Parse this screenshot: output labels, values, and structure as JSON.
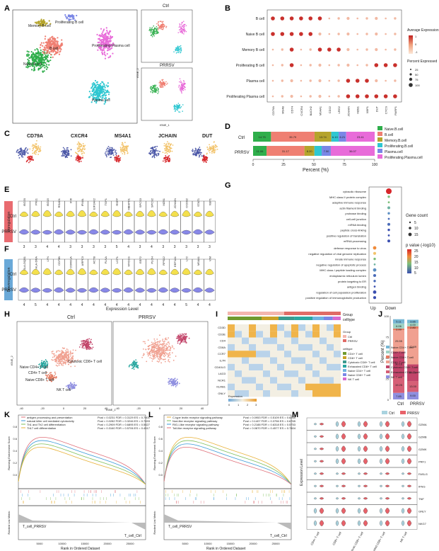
{
  "panel_letters": [
    "A",
    "B",
    "C",
    "D",
    "E",
    "F",
    "G",
    "H",
    "I",
    "J",
    "K",
    "L",
    "M"
  ],
  "panelA": {
    "clusters": [
      "Memory B cell",
      "Proliferating B cell",
      "Proliferating Plasma cell",
      "B cell",
      "Naive B cell",
      "Plasma cell"
    ],
    "small_titles": [
      "Ctrl",
      "PRRSV"
    ],
    "axis_x": "tSNE_1",
    "axis_y": "tSNE_2"
  },
  "panelB": {
    "rows": [
      "B cell",
      "Naive B cell",
      "Memory B cell",
      "Proliferating B cell",
      "Plasma cell",
      "Proliferating Plasma cell"
    ],
    "genes": [
      "CD79A",
      "MS4B",
      "CD74",
      "CXCR4",
      "BACH2",
      "MS4A1",
      "CD22",
      "LRG2",
      "JCHAIN",
      "MZB1",
      "XBP1",
      "DUT",
      "CYCS",
      "PARP1"
    ],
    "legend_title1": "Average Expression",
    "legend_ticks1": [
      "1",
      "0",
      "-1"
    ],
    "legend_title2": "Percent Expressed",
    "legend_ticks2": [
      "25",
      "50",
      "75",
      "100"
    ]
  },
  "panelC": {
    "genes": [
      "CD79A",
      "CXCR4",
      "MS4A1",
      "JCHAIN",
      "DUT"
    ]
  },
  "panelD": {
    "chart_data": {
      "type": "bar",
      "orientation": "horizontal-stacked",
      "categories": [
        "Ctrl",
        "PRRSV"
      ],
      "series": [
        {
          "name": "Naive.B.cell",
          "color": "#2fae4b",
          "values": [
            14.75,
            11.06
          ]
        },
        {
          "name": "B.cell",
          "color": "#ef7f72",
          "values": [
            35.79,
            31.17
          ]
        },
        {
          "name": "Memory.B.cell",
          "color": "#b5a42c",
          "values": [
            13.74,
            8.2
          ]
        },
        {
          "name": "Proliferating.B.cell",
          "color": "#2ec7d1",
          "values": [
            6.1,
            6.0
          ]
        },
        {
          "name": "Plasma.cell",
          "color": "#7a86e6",
          "values": [
            6.21,
            7.5
          ]
        },
        {
          "name": "Proliferating.Plasma.cell",
          "color": "#e86bd9",
          "values": [
            23.41,
            36.07
          ]
        }
      ],
      "xlabel": "Percent (%)",
      "xticks": [
        "0",
        "25",
        "50",
        "75",
        "100"
      ],
      "xlim": [
        0,
        100
      ]
    }
  },
  "panelE": {
    "genes": [
      "ISG20",
      "PFE1",
      "ISG15",
      "RSAD1",
      "IFI6",
      "IFI44L",
      "EIF2AK2",
      "TOP1",
      "RSFP",
      "MBHPD1",
      "SPCS3",
      "SPCS2",
      "MZB1",
      "JCHAIN",
      "CCDB2",
      "STAT1",
      "XBP1"
    ],
    "group_label": "Upregulation",
    "rows": [
      "Ctrl",
      "PRRSV"
    ],
    "ticks": [
      "3",
      "3",
      "4",
      "4",
      "3",
      "3",
      "3",
      "3",
      "5",
      "4",
      "3",
      "4",
      "3",
      "3",
      "3",
      "3",
      "3"
    ]
  },
  "panelF": {
    "genes": [
      "SLA-DQB1",
      "HLA-DRA",
      "LYN",
      "CD79B",
      "CORO1A",
      "ARPC3",
      "ACTB",
      "FLNA",
      "LCP1",
      "MYO1G",
      "EEF2",
      "PLCH",
      "RPS12",
      "EEF1A1",
      "LY2",
      "MS4A1",
      "VIM"
    ],
    "group_label": "Downregulation",
    "rows": [
      "Ctrl",
      "PRRSV"
    ],
    "ticks": [
      "4",
      "5",
      "4",
      "4",
      "4",
      "4",
      "4",
      "4",
      "4",
      "4",
      "4",
      "4",
      "4",
      "4",
      "5",
      "4",
      "4"
    ],
    "xlabel": "Expression Level"
  },
  "panelG": {
    "terms_up": [
      "cytosolic ribosome",
      "MHC class II protein complex",
      "adaptive immune response",
      "actin filament binding",
      "protease binding",
      "cell-cell junction",
      "mRNA binding",
      "peptide cross-linking",
      "positive regulation of translation",
      "mRNA processing"
    ],
    "terms_down": [
      "defense response to virus",
      "negative regulation of viral genome replication",
      "innate immune response",
      "negative regulation of apoptotic process",
      "MHC class I peptide loading complex",
      "endoplasmic reticulum lumen",
      "protein targeting to ER",
      "antigen binding",
      "regulation of cell population proliferation",
      "positive regulation of immunoglobulin production"
    ],
    "xticks": [
      "Up",
      "Down"
    ],
    "legend_count_title": "Gene count",
    "legend_count": [
      "5",
      "10",
      "15"
    ],
    "legend_p_title": "p value (-log10)",
    "legend_p": [
      "25",
      "20",
      "15",
      "10",
      "5"
    ]
  },
  "panelH": {
    "titles": [
      "Ctrl",
      "PRRSV"
    ],
    "axis_x": "tSNE_1",
    "axis_y": "tSNE_2",
    "cluster_labels": [
      "CD4+ T cell",
      "Naive CD4+ T cell",
      "Naive CD8+ T cell",
      "NK T cell",
      "Cytotoxic CD8+ T cell"
    ],
    "xticks": [
      "-40",
      "-20",
      "0",
      "20",
      "40",
      "-40",
      "-20",
      "0",
      "20",
      "40"
    ]
  },
  "panelI": {
    "genes": [
      "CD3D",
      "CD3E",
      "CD4",
      "CD8A",
      "CCR7",
      "IL7R",
      "CD40LG",
      "LAG3",
      "NCR1",
      "KLRB1",
      "GNLY"
    ],
    "legend_group_title": "Group",
    "legend_group": [
      "Ctrl",
      "PRRSV"
    ],
    "legend_celltype_title": "celltype",
    "legend_celltype": [
      "CD4+ T cell",
      "CD8+ T cell",
      "Cytotoxic CD8+ T cell",
      "Exhausted CD8+ T cell",
      "Naive CD4+ T cell",
      "Naive CD8+ T cell",
      "NK T cell"
    ],
    "legend_expr_title": "Expression",
    "legend_expr": [
      "0",
      "1",
      "2",
      "3"
    ],
    "top_labels": [
      "Group",
      "celltype"
    ]
  },
  "panelJ": {
    "chart_data": {
      "type": "bar",
      "orientation": "vertical-stacked",
      "categories": [
        "Ctrl",
        "PRRSV"
      ],
      "series": [
        {
          "name": "NK.T.cell",
          "color": "#8f8fe0",
          "values": [
            7.85,
            9.0
          ]
        },
        {
          "name": "Exhausted.CD8+.T.cell",
          "color": "#d65f76",
          "values": [
            19.25,
            13.0
          ]
        },
        {
          "name": "Cytotoxic.CD8+.T.cell",
          "color": "#c2456a",
          "values": [
            30.16,
            20.0
          ]
        },
        {
          "name": "CD8+.T.cell",
          "color": "#f0a090",
          "values": [
            25.55,
            42.69
          ]
        },
        {
          "name": "Naive.CD8+.T.cell",
          "color": "#e47a60",
          "values": [
            2.0,
            2.8
          ]
        },
        {
          "name": "CD4+.T.cell",
          "color": "#9fd2c4",
          "values": [
            6.06,
            4.0
          ]
        },
        {
          "name": "Naive.CD4+.T.cell",
          "color": "#76b7d4",
          "values": [
            5.11,
            3.86
          ]
        }
      ],
      "ylabel": "Percent (%)",
      "yticks": [
        "0",
        "25",
        "50",
        "75",
        "100"
      ],
      "ylim": [
        0,
        100
      ],
      "segment_labels": [
        [
          "7.85",
          "19.25",
          "30.16",
          "25.55",
          "2.00",
          "6.06",
          "5.11"
        ],
        [
          "9.00",
          "13.00",
          "20.00",
          "42.69",
          "2.80",
          "4.00",
          "3.86"
        ]
      ]
    }
  },
  "panelK": {
    "legend": [
      "antigen processing and presentation",
      "natural killer cell mediated cytotoxicity",
      "Th1 and Th2 cell differentiation",
      "Th17 cell differentiation"
    ],
    "stats": [
      "Pval = 0.0231 FDR = 0.3129 ES = 0.7601",
      "Pval = 0.0282 FDR = 0.3246 ES = 0.7693",
      "Pval = 0.2909 FDR = 0.6895 ES = 0.5627",
      "Pval = 0.3160 FDR = 0.5706 ES = 0.4517"
    ],
    "ylabel_top": "Running Enrichment Score",
    "ylabel_bottom": "Ranked List Metric",
    "xlabel": "Rank in Ordered Dataset",
    "left_label": "T_cell_PRRSV",
    "right_label": "T_cell_Ctrl",
    "xticks": [
      "5000",
      "10000",
      "15000",
      "20000",
      "25000"
    ],
    "yticks": [
      "0.8",
      "0.6",
      "0.4",
      "0.2",
      "0.0"
    ]
  },
  "panelL": {
    "legend": [
      "C-type lectin receptor signaling pathway",
      "Nod-like receptor signaling pathway",
      "RIG-I-like receptor signaling pathway",
      "Toll-like receptor signaling pathway"
    ],
    "stats": [
      "Pval = 0.0953 FDR = 0.5109 ES = 0.6265",
      "Pval = 0.1407 FDR = 0.3756 ES = 0.6765",
      "Pval = 0.2188 FDR = 0.6318 ES = 0.5753",
      "Pval = 0.0870 FDR = 0.4577 ES = 0.7804"
    ],
    "ylabel_top": "Running Enrichment Score",
    "ylabel_bottom": "Ranked List Metric",
    "xlabel": "Rank in Ordered Dataset",
    "left_label": "T_cell_PRRSV",
    "right_label": "T_cell_Ctrl",
    "xticks": [
      "5000",
      "10000",
      "15000",
      "20000",
      "25000"
    ],
    "yticks": [
      "0.8",
      "0.6",
      "0.4",
      "0.2",
      "0.0"
    ]
  },
  "panelM": {
    "legend": [
      "Ctrl",
      "PRRSV"
    ],
    "genes": [
      "GZMA",
      "GZMB",
      "GZMK",
      "PRF1",
      "FASLG",
      "IFNG",
      "TNF",
      "GNLY",
      "NKG7"
    ],
    "celltypes": [
      "CD4+ T cell",
      "CD8+ T cell",
      "Cytotoxic CD8+ T cell",
      "Exhausted CD8+ T cell",
      "NK T cell"
    ],
    "ylabel": "Expression Level"
  }
}
